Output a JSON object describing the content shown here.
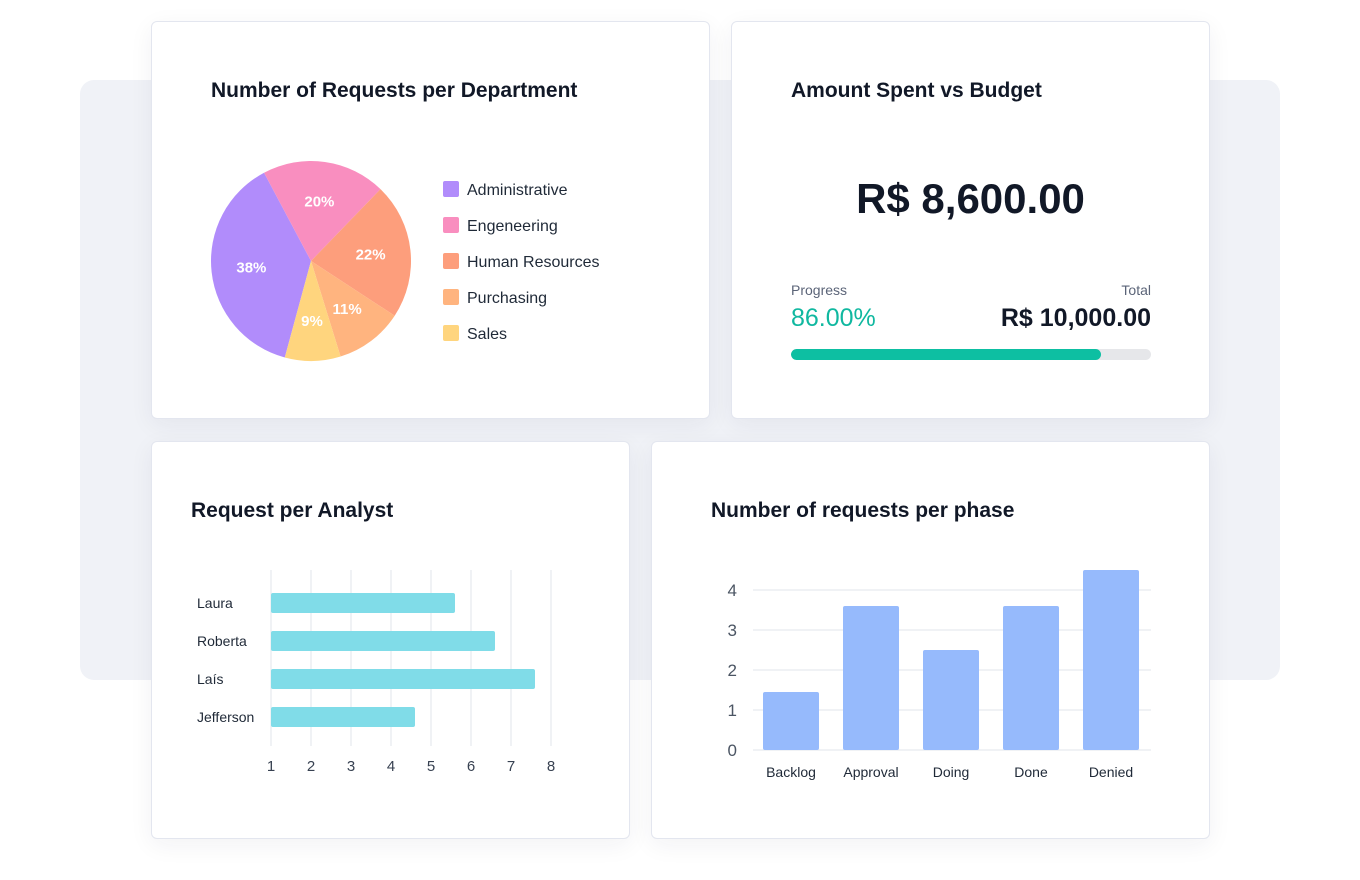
{
  "chart_data": [
    {
      "type": "pie",
      "title": "Number of Requests per Department",
      "categories": [
        "Administrative",
        "Engeneering",
        "Human Resources",
        "Purchasing",
        "Sales"
      ],
      "values": [
        38,
        20,
        22,
        11,
        9
      ],
      "labels": [
        "38%",
        "20%",
        "22%",
        "11%",
        "9%"
      ],
      "colors": [
        "#b18cfb",
        "#f98ebf",
        "#fd9e7c",
        "#ffb47f",
        "#ffd57e"
      ],
      "legend": "right"
    },
    {
      "type": "bar",
      "orientation": "horizontal",
      "title": "Request per Analyst",
      "categories": [
        "Laura",
        "Roberta",
        "Laís",
        "Jefferson"
      ],
      "values": [
        5.6,
        6.6,
        7.6,
        4.6
      ],
      "xlim": [
        1,
        8
      ],
      "xticks": [
        "1",
        "2",
        "3",
        "4",
        "5",
        "6",
        "7",
        "8"
      ],
      "grid": true,
      "color": "#80dce8"
    },
    {
      "type": "bar",
      "title": "Number of requests per phase",
      "categories": [
        "Backlog",
        "Approval",
        "Doing",
        "Done",
        "Denied"
      ],
      "values": [
        1.45,
        3.6,
        2.5,
        3.6,
        4.5
      ],
      "ylim": [
        0,
        4.5
      ],
      "yticks": [
        "0",
        "1",
        "2",
        "3",
        "4"
      ],
      "grid": true,
      "color": "#96bafc"
    }
  ],
  "budget": {
    "title": "Amount Spent vs Budget",
    "amount": "R$ 8,600.00",
    "progress_label": "Progress",
    "progress_value": "86.00%",
    "progress_fraction": 0.86,
    "total_label": "Total",
    "total_value": "R$ 10,000.00",
    "accent_color": "#0dbfa2"
  }
}
